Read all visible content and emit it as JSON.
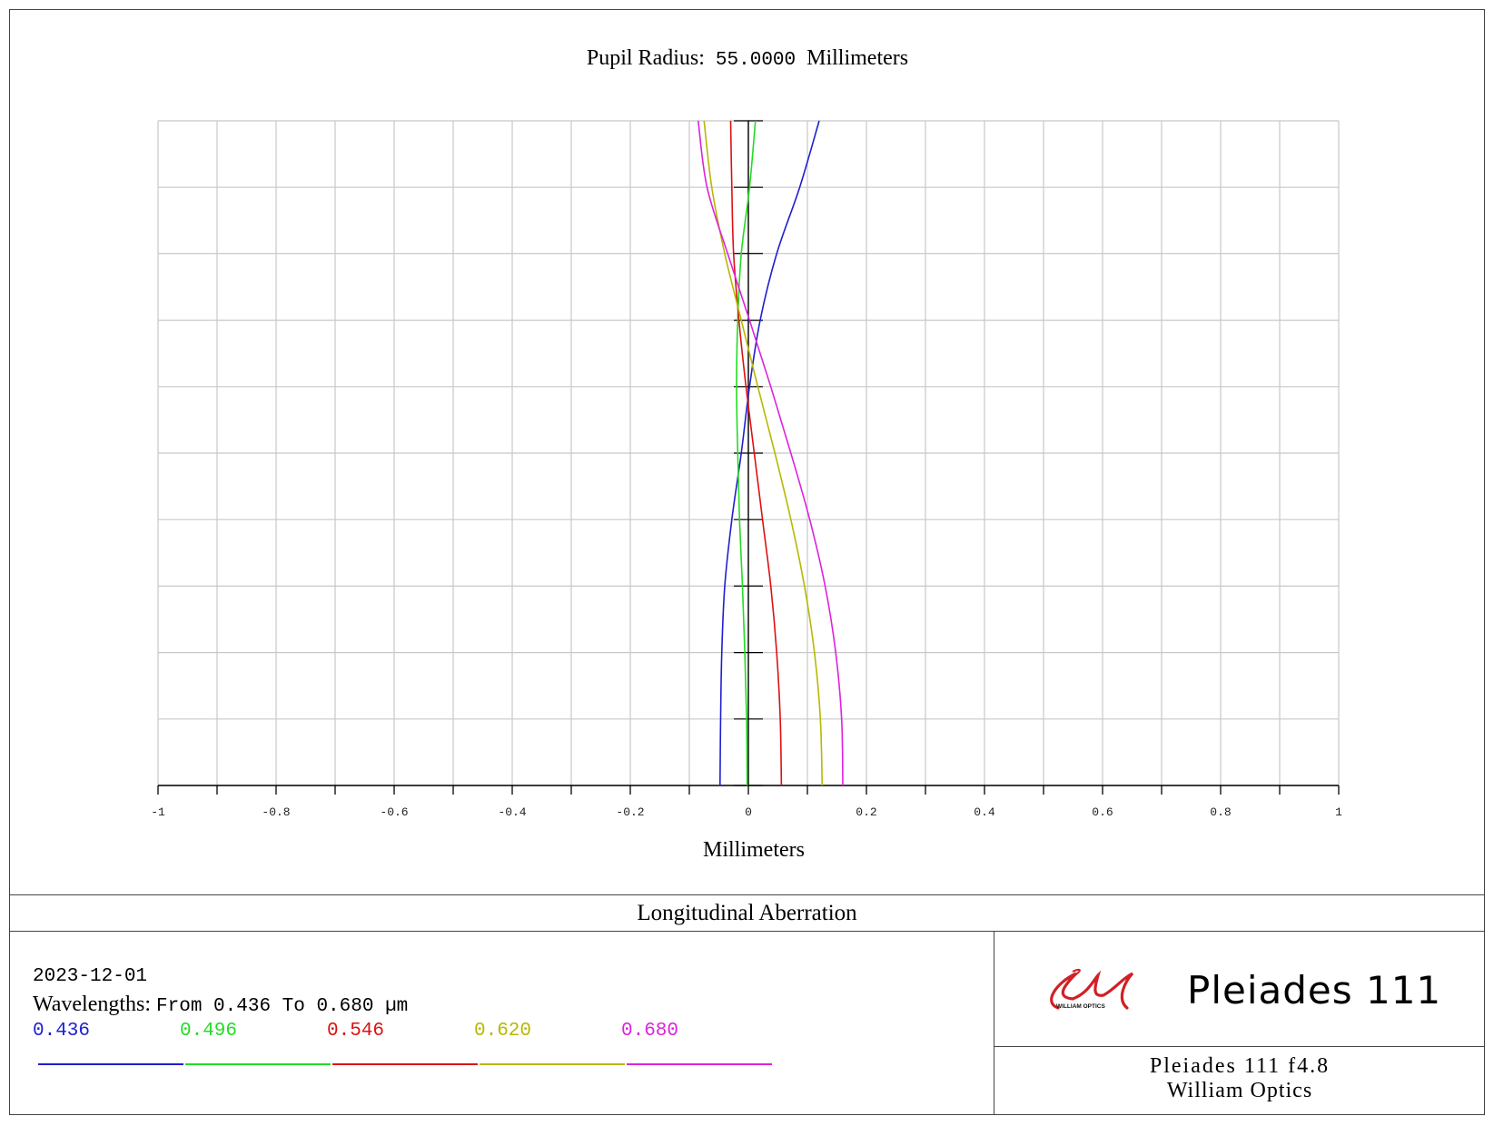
{
  "chart_data": {
    "type": "line",
    "title": "Pupil Radius:",
    "title_value": "55.0000",
    "title_unit": "Millimeters",
    "xlabel": "Millimeters",
    "ylabel": "",
    "xlim": [
      -1,
      1
    ],
    "ylim": [
      0,
      1
    ],
    "x_ticks": [
      "-1",
      "-0.8",
      "-0.6",
      "-0.4",
      "-0.2",
      "0",
      "0.2",
      "0.4",
      "0.6",
      "0.8",
      "1"
    ],
    "grid": true,
    "series": [
      {
        "name": "0.436",
        "color": "#1f1fd0",
        "points": [
          [
            -0.048,
            0
          ],
          [
            -0.047,
            0.1
          ],
          [
            -0.045,
            0.2
          ],
          [
            -0.04,
            0.3
          ],
          [
            -0.028,
            0.4
          ],
          [
            -0.012,
            0.5
          ],
          [
            0.002,
            0.6
          ],
          [
            0.02,
            0.7
          ],
          [
            0.048,
            0.8
          ],
          [
            0.087,
            0.9
          ],
          [
            0.12,
            1.0
          ]
        ]
      },
      {
        "name": "0.496",
        "color": "#22dd22",
        "points": [
          [
            -0.002,
            0
          ],
          [
            -0.003,
            0.1
          ],
          [
            -0.006,
            0.2
          ],
          [
            -0.01,
            0.3
          ],
          [
            -0.015,
            0.4
          ],
          [
            -0.018,
            0.5
          ],
          [
            -0.02,
            0.6
          ],
          [
            -0.018,
            0.7
          ],
          [
            -0.012,
            0.8
          ],
          [
            0.002,
            0.9
          ],
          [
            0.012,
            1.0
          ]
        ]
      },
      {
        "name": "0.546",
        "color": "#dd1111",
        "points": [
          [
            0.056,
            0
          ],
          [
            0.054,
            0.1
          ],
          [
            0.048,
            0.2
          ],
          [
            0.038,
            0.3
          ],
          [
            0.024,
            0.4
          ],
          [
            0.01,
            0.5
          ],
          [
            -0.004,
            0.6
          ],
          [
            -0.016,
            0.7
          ],
          [
            -0.025,
            0.8
          ],
          [
            -0.028,
            0.9
          ],
          [
            -0.03,
            1.0
          ]
        ]
      },
      {
        "name": "0.620",
        "color": "#b8b800",
        "points": [
          [
            0.125,
            0
          ],
          [
            0.122,
            0.1
          ],
          [
            0.112,
            0.2
          ],
          [
            0.095,
            0.3
          ],
          [
            0.072,
            0.4
          ],
          [
            0.045,
            0.5
          ],
          [
            0.016,
            0.6
          ],
          [
            -0.012,
            0.7
          ],
          [
            -0.04,
            0.8
          ],
          [
            -0.062,
            0.9
          ],
          [
            -0.075,
            1.0
          ]
        ]
      },
      {
        "name": "0.680",
        "color": "#dd22dd",
        "points": [
          [
            0.16,
            0
          ],
          [
            0.158,
            0.1
          ],
          [
            0.148,
            0.2
          ],
          [
            0.13,
            0.3
          ],
          [
            0.104,
            0.4
          ],
          [
            0.072,
            0.5
          ],
          [
            0.038,
            0.6
          ],
          [
            0.002,
            0.7
          ],
          [
            -0.035,
            0.8
          ],
          [
            -0.07,
            0.9
          ],
          [
            -0.085,
            1.0
          ]
        ]
      }
    ]
  },
  "footer": {
    "plot_name": "Longitudinal Aberration",
    "date": "2023-12-01",
    "wavelengths_label": "Wavelengths:",
    "wavelengths_range": "From 0.436 To 0.680 µm",
    "legend": [
      {
        "label": "0.436",
        "color": "#1f1fd0"
      },
      {
        "label": "0.496",
        "color": "#22dd22"
      },
      {
        "label": "0.546",
        "color": "#dd1111"
      },
      {
        "label": "0.620",
        "color": "#b8b800"
      },
      {
        "label": "0.680",
        "color": "#dd22dd"
      }
    ],
    "product_name": "Pleiades 111",
    "logo_text": "WILLIAM OPTICS",
    "logo_color": "#d21f26",
    "description_line1": "Pleiades 111 f4.8",
    "description_line2": "William Optics"
  }
}
